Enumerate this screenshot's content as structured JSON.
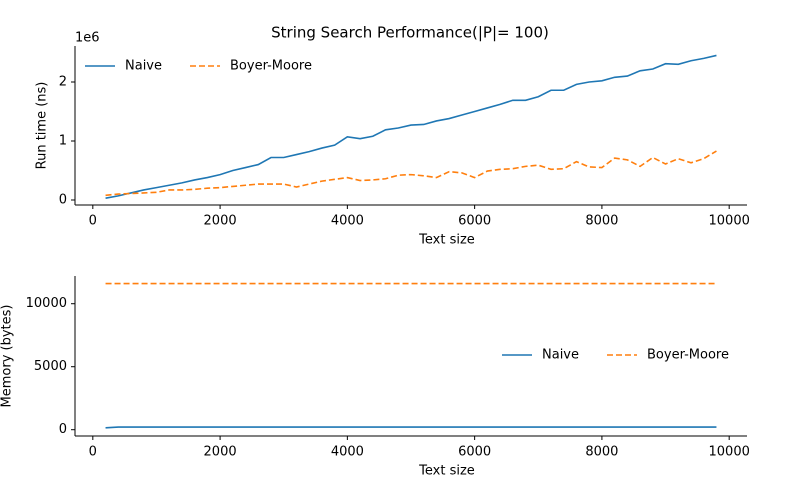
{
  "chart_data": [
    {
      "type": "line",
      "title": "String Search Performance(|P|= 100)",
      "x_label": "Text size",
      "y_label": "Run time (ns)",
      "y_offset_label": "1e6",
      "x": [
        200,
        400,
        600,
        800,
        1000,
        1200,
        1400,
        1600,
        1800,
        2000,
        2200,
        2400,
        2600,
        2800,
        3000,
        3200,
        3400,
        3600,
        3800,
        4000,
        4200,
        4400,
        4600,
        4800,
        5000,
        5200,
        5400,
        5600,
        5800,
        6000,
        6200,
        6400,
        6600,
        6800,
        7000,
        7200,
        7400,
        7600,
        7800,
        8000,
        8200,
        8400,
        8600,
        8800,
        9000,
        9200,
        9400,
        9600,
        9800
      ],
      "series": [
        {
          "name": "Naive",
          "color": "#1f77b4",
          "dash": "solid",
          "values": [
            0.03,
            0.07,
            0.12,
            0.17,
            0.21,
            0.25,
            0.29,
            0.34,
            0.38,
            0.43,
            0.5,
            0.55,
            0.6,
            0.72,
            0.72,
            0.77,
            0.82,
            0.88,
            0.93,
            1.07,
            1.04,
            1.08,
            1.19,
            1.22,
            1.27,
            1.28,
            1.34,
            1.38,
            1.44,
            1.5,
            1.56,
            1.62,
            1.69,
            1.69,
            1.75,
            1.86,
            1.86,
            1.96,
            2.0,
            2.02,
            2.08,
            2.1,
            2.19,
            2.22,
            2.31,
            2.3,
            2.36,
            2.4,
            2.45
          ]
        },
        {
          "name": "Boyer-Moore",
          "color": "#ff7f0e",
          "dash": "dashed",
          "values": [
            0.08,
            0.1,
            0.11,
            0.12,
            0.13,
            0.17,
            0.17,
            0.18,
            0.2,
            0.21,
            0.23,
            0.25,
            0.27,
            0.27,
            0.27,
            0.22,
            0.27,
            0.32,
            0.35,
            0.38,
            0.33,
            0.34,
            0.36,
            0.42,
            0.43,
            0.41,
            0.38,
            0.48,
            0.46,
            0.38,
            0.49,
            0.52,
            0.53,
            0.57,
            0.59,
            0.52,
            0.53,
            0.65,
            0.56,
            0.55,
            0.71,
            0.68,
            0.57,
            0.72,
            0.61,
            0.7,
            0.63,
            0.7,
            0.83
          ]
        }
      ],
      "xlim": [
        -280,
        10280
      ],
      "xticks": [
        0,
        2000,
        4000,
        6000,
        8000,
        10000
      ],
      "ylim": [
        -0.085,
        2.61
      ],
      "yticks": [
        0,
        1,
        2
      ],
      "legend": "upper left"
    },
    {
      "type": "line",
      "x_label": "Text size",
      "y_label": "Memory (bytes)",
      "x": [
        200,
        400,
        600,
        800,
        1000,
        1200,
        1400,
        1600,
        1800,
        2000,
        2200,
        2400,
        2600,
        2800,
        3000,
        3200,
        3400,
        3600,
        3800,
        4000,
        4200,
        4400,
        4600,
        4800,
        5000,
        5200,
        5400,
        5600,
        5800,
        6000,
        6200,
        6400,
        6600,
        6800,
        7000,
        7200,
        7400,
        7600,
        7800,
        8000,
        8200,
        8400,
        8600,
        8800,
        9000,
        9200,
        9400,
        9600,
        9800
      ],
      "series": [
        {
          "name": "Naive",
          "color": "#1f77b4",
          "dash": "solid",
          "values": [
            150,
            210,
            210,
            210,
            210,
            210,
            210,
            210,
            210,
            210,
            210,
            210,
            210,
            210,
            210,
            210,
            210,
            210,
            210,
            210,
            210,
            210,
            210,
            210,
            210,
            210,
            210,
            210,
            210,
            210,
            210,
            210,
            210,
            210,
            210,
            210,
            210,
            210,
            210,
            210,
            210,
            210,
            210,
            210,
            210,
            210,
            210,
            210,
            210
          ]
        },
        {
          "name": "Boyer-Moore",
          "color": "#ff7f0e",
          "dash": "dashed",
          "values": [
            11600,
            11600,
            11600,
            11600,
            11600,
            11600,
            11600,
            11600,
            11600,
            11600,
            11600,
            11600,
            11600,
            11600,
            11600,
            11600,
            11600,
            11600,
            11600,
            11600,
            11600,
            11600,
            11600,
            11600,
            11600,
            11600,
            11600,
            11600,
            11600,
            11600,
            11600,
            11600,
            11600,
            11600,
            11600,
            11600,
            11600,
            11600,
            11600,
            11600,
            11600,
            11600,
            11600,
            11600,
            11600,
            11600,
            11600,
            11600,
            11600
          ]
        }
      ],
      "xlim": [
        -280,
        10280
      ],
      "xticks": [
        0,
        2000,
        4000,
        6000,
        8000,
        10000
      ],
      "ylim": [
        -500,
        12200
      ],
      "yticks": [
        0,
        5000,
        10000
      ],
      "legend": "center right"
    }
  ]
}
